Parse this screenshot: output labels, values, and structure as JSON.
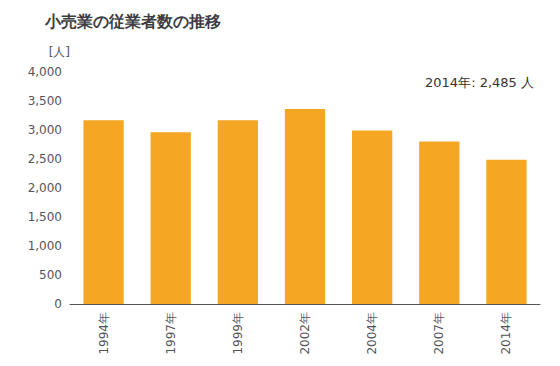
{
  "chart_data": {
    "type": "bar",
    "title": "小売業の従業者数の推移",
    "ylabel": "[人]",
    "annotation": "2014年: 2,485 人",
    "categories": [
      "1994年",
      "1997年",
      "1999年",
      "2002年",
      "2004年",
      "2007年",
      "2014年"
    ],
    "values": [
      3170,
      2960,
      3170,
      3360,
      2990,
      2800,
      2485
    ],
    "color": "#F5A623",
    "ylim": [
      0,
      4000
    ],
    "yticks": [
      0,
      500,
      {
        "value": 1000,
        "label": "1,000"
      },
      {
        "value": 1500,
        "label": "1,500"
      },
      {
        "value": 2000,
        "label": "2,000"
      },
      {
        "value": 2500,
        "label": "2,500"
      },
      {
        "value": 3000,
        "label": "3,000"
      },
      {
        "value": 3500,
        "label": "3,500"
      },
      {
        "value": 4000,
        "label": "4,000"
      }
    ],
    "grid": false
  }
}
